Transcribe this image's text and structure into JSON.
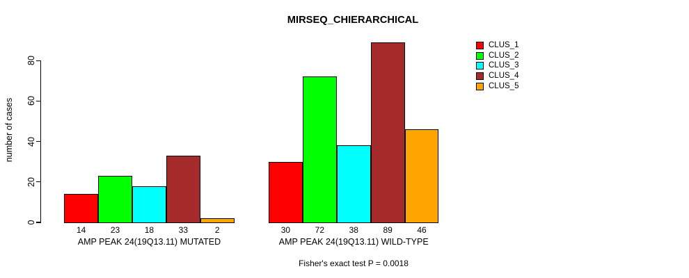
{
  "title": "MIRSEQ_CHIERARCHICAL",
  "chart_data": {
    "type": "bar",
    "title": "MIRSEQ_CHIERARCHICAL",
    "ylabel": "number of cases",
    "xlabel": "",
    "ylim": [
      0,
      80
    ],
    "yticks": [
      0,
      20,
      40,
      60,
      80
    ],
    "categories": [
      "AMP PEAK 24(19Q13.11) MUTATED",
      "AMP PEAK 24(19Q13.11) WILD-TYPE"
    ],
    "series": [
      {
        "name": "CLUS_1",
        "color": "#FF0000",
        "values": [
          14,
          30
        ]
      },
      {
        "name": "CLUS_2",
        "color": "#00FF00",
        "values": [
          23,
          72
        ]
      },
      {
        "name": "CLUS_3",
        "color": "#00FFFF",
        "values": [
          18,
          38
        ]
      },
      {
        "name": "CLUS_4",
        "color": "#A52A2A",
        "values": [
          33,
          89
        ]
      },
      {
        "name": "CLUS_5",
        "color": "#FFA500",
        "values": [
          2,
          46
        ]
      }
    ],
    "bar_value_labels": [
      [
        14,
        23,
        18,
        33,
        2
      ],
      [
        30,
        72,
        38,
        89,
        46
      ]
    ],
    "legend_position": "top-right",
    "legend_entries": [
      "CLUS_1",
      "CLUS_2",
      "CLUS_3",
      "CLUS_4",
      "CLUS_5"
    ],
    "grid": false,
    "annotation": "Fisher's exact test P = 0.0018"
  }
}
